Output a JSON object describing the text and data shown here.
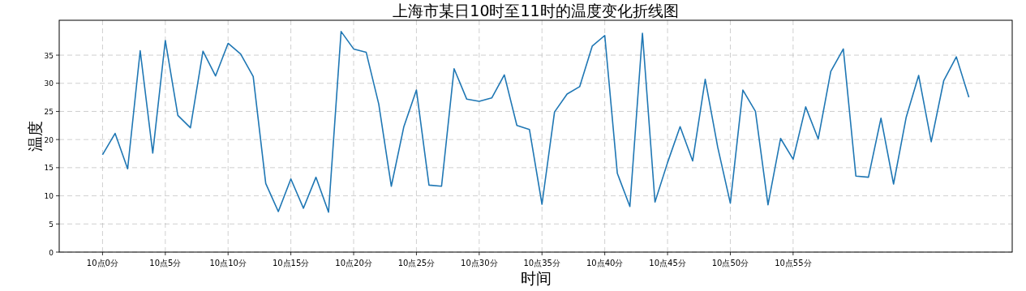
{
  "chart_data": {
    "type": "line",
    "title": "上海市某日10时至11时的温度变化折线图",
    "xlabel": "时间",
    "ylabel": "温度",
    "color": "#1f77b4",
    "grid": true,
    "categories": [
      "10点0分",
      null,
      null,
      null,
      null,
      "10点5分",
      null,
      null,
      null,
      null,
      "10点10分",
      null,
      null,
      null,
      null,
      "10点15分",
      null,
      null,
      null,
      null,
      "10点20分",
      null,
      null,
      null,
      null,
      "10点25分",
      null,
      null,
      null,
      null,
      "10点30分",
      null,
      null,
      null,
      null,
      "10点35分",
      null,
      null,
      null,
      null,
      "10点40分",
      null,
      null,
      null,
      null,
      "10点45分",
      null,
      null,
      null,
      null,
      "10点50分",
      null,
      null,
      null,
      null,
      "10点55分",
      null,
      null,
      null,
      null,
      null,
      null,
      null,
      null,
      null,
      null,
      null,
      null,
      null,
      null
    ],
    "values": [
      17.3,
      21.1,
      14.8,
      35.8,
      17.6,
      37.6,
      24.3,
      22.1,
      35.7,
      31.3,
      37.1,
      35.2,
      31.2,
      12.2,
      7.2,
      13.0,
      7.8,
      13.3,
      7.1,
      39.2,
      36.1,
      35.5,
      26.3,
      11.7,
      22.3,
      28.8,
      11.9,
      11.7,
      32.6,
      27.2,
      26.8,
      27.4,
      31.5,
      22.5,
      21.8,
      8.5,
      24.9,
      28.1,
      29.4,
      36.6,
      38.5,
      14.0,
      8.1,
      38.9,
      8.9,
      15.9,
      22.3,
      16.2,
      30.7,
      18.6,
      8.7,
      28.8,
      25.0,
      8.4,
      20.2,
      16.5,
      25.8,
      20.1,
      32.1,
      36.1,
      13.5,
      13.3,
      23.8,
      12.1,
      23.9,
      31.4,
      19.6,
      30.5,
      34.7,
      27.5
    ],
    "ylim": [
      0,
      41.2
    ],
    "yticks": [
      0,
      5,
      10,
      15,
      20,
      25,
      30,
      35
    ]
  }
}
